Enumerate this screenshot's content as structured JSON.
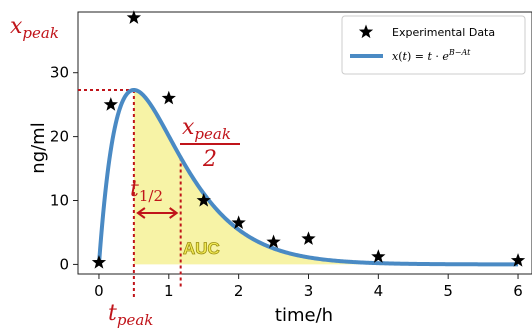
{
  "chart_data": {
    "type": "scatter",
    "xlabel": "time/h",
    "ylabel": "ng/ml",
    "xlim": [
      -0.3,
      6.2
    ],
    "ylim": [
      -1.5,
      39.5
    ],
    "xticks": [
      "0",
      "1",
      "2",
      "3",
      "4",
      "5",
      "6"
    ],
    "yticks": [
      "0",
      "10",
      "20",
      "30"
    ],
    "series": [
      {
        "name": "Experimental Data",
        "kind": "scatter",
        "marker": "star",
        "color": "#000000",
        "x": [
          0,
          0.17,
          0.5,
          1.0,
          1.5,
          2.0,
          2.5,
          3.0,
          4.0,
          6.0
        ],
        "y": [
          0.3,
          25.0,
          38.6,
          26.0,
          10.0,
          6.5,
          3.5,
          4.0,
          1.2,
          0.6
        ]
      },
      {
        "name": "x(t) = t·e^{B−At}",
        "kind": "line",
        "color": "#4a8ac4",
        "model": {
          "A": 2.0,
          "B": 5.0
        }
      }
    ],
    "annotations": {
      "x_peak": "x_peak",
      "x_peak_half_num": "x_peak",
      "x_peak_half_den": "2",
      "t_half": "t_1/2",
      "t_peak": "t_peak",
      "auc": "AUC"
    },
    "t_peak": 0.5,
    "t_half_end": 1.17,
    "highlight_color": "#f7f3a6",
    "annotation_color": "#c0141a",
    "grid": false,
    "legend_position": "top-right"
  }
}
